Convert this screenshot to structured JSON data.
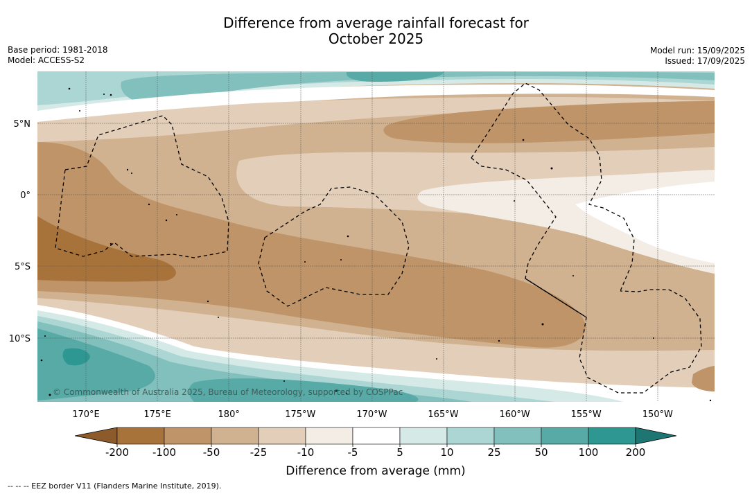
{
  "header": {
    "title_line1": "Difference from average rainfall forecast for",
    "title_line2": "October 2025",
    "base_period": "Base period: 1981-2018",
    "model": "Model: ACCESS-S2",
    "model_run": "Model run: 15/09/2025",
    "issued": "Issued: 17/09/2025"
  },
  "map": {
    "lat_labels": [
      "5°N",
      "0°",
      "5°S",
      "10°S"
    ],
    "lon_labels": [
      "170°E",
      "175°E",
      "180°",
      "175°W",
      "170°W",
      "165°W",
      "160°W",
      "155°W",
      "150°W"
    ],
    "watermark": "© Commonwealth of Australia 2025, Bureau of Meteorology, supported by COSPPac"
  },
  "colorbar": {
    "ticks": [
      "-200",
      "-100",
      "-50",
      "-25",
      "-10",
      "-5",
      "5",
      "10",
      "25",
      "50",
      "100",
      "200"
    ],
    "colors": [
      "#a8733a",
      "#bf9468",
      "#d1b290",
      "#e3cfb9",
      "#f3ede5",
      "#ffffff",
      "#d5eae7",
      "#acd6d3",
      "#82c0bd",
      "#58aaa7",
      "#2f9792"
    ],
    "under_color": "#8c5a2b",
    "over_color": "#1d7672",
    "title": "Difference from average (mm)"
  },
  "footnote": "--  --  -- EEZ border V11 (Flanders Marine Institute, 2019)."
}
